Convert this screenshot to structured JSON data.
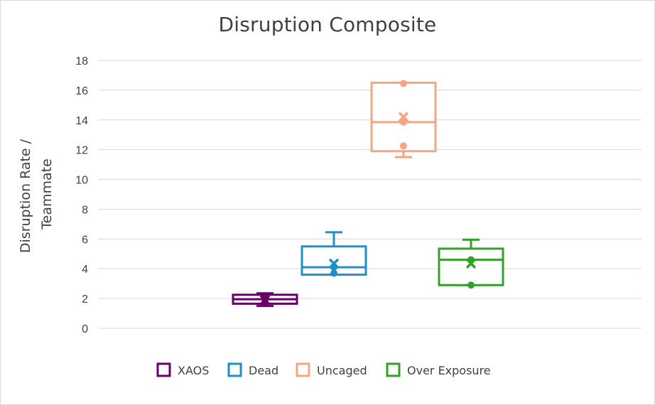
{
  "chart_data": {
    "type": "boxplot",
    "title": "Disruption Composite",
    "ylabel_lines": [
      "Disruption Rate /",
      "Teammate"
    ],
    "ylim": [
      0,
      18
    ],
    "yticks": [
      0,
      2,
      4,
      6,
      8,
      10,
      12,
      14,
      16,
      18
    ],
    "grid": true,
    "legend_position": "bottom",
    "series": [
      {
        "name": "XAOS",
        "color": "#660066",
        "min": 1.5,
        "q1": 1.65,
        "median": 1.95,
        "q3": 2.25,
        "max": 2.35,
        "mean": 1.9,
        "points": [
          1.75,
          2.05
        ]
      },
      {
        "name": "Dead",
        "color": "#1f8fc8",
        "min": 3.6,
        "q1": 3.6,
        "median": 4.1,
        "q3": 5.5,
        "max": 6.45,
        "mean": 4.35,
        "points": [
          3.7,
          4.1
        ]
      },
      {
        "name": "Uncaged",
        "color": "#f4a582",
        "min": 11.5,
        "q1": 11.9,
        "median": 13.85,
        "q3": 16.5,
        "max": 16.5,
        "mean": 14.2,
        "points": [
          12.25,
          13.85,
          16.45
        ]
      },
      {
        "name": "Over Exposure",
        "color": "#33a02c",
        "min": 2.9,
        "q1": 2.9,
        "median": 4.6,
        "q3": 5.35,
        "max": 5.95,
        "mean": 4.35,
        "points": [
          2.9,
          4.6
        ]
      }
    ]
  }
}
